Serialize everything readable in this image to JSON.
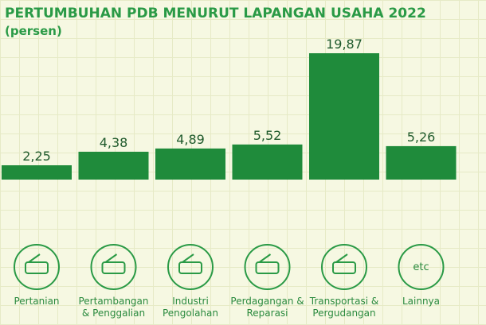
{
  "chart_data": {
    "type": "bar",
    "title": "PERTUMBUHAN PDB MENURUT LAPANGAN USAHA 2022",
    "subtitle": "(persen)",
    "categories": [
      "Pertanian",
      "Pertambangan & Penggalian",
      "Industri Pengolahan",
      "Perdagangan & Reparasi",
      "Transportasi & Pergudangan",
      "Lainnya"
    ],
    "values": [
      2.25,
      4.38,
      4.89,
      5.52,
      19.87,
      5.26
    ],
    "value_labels": [
      "2,25",
      "4,38",
      "4,89",
      "5,52",
      "19,87",
      "5,26"
    ],
    "color": "#1f8b3b",
    "icon_text": "etc"
  }
}
